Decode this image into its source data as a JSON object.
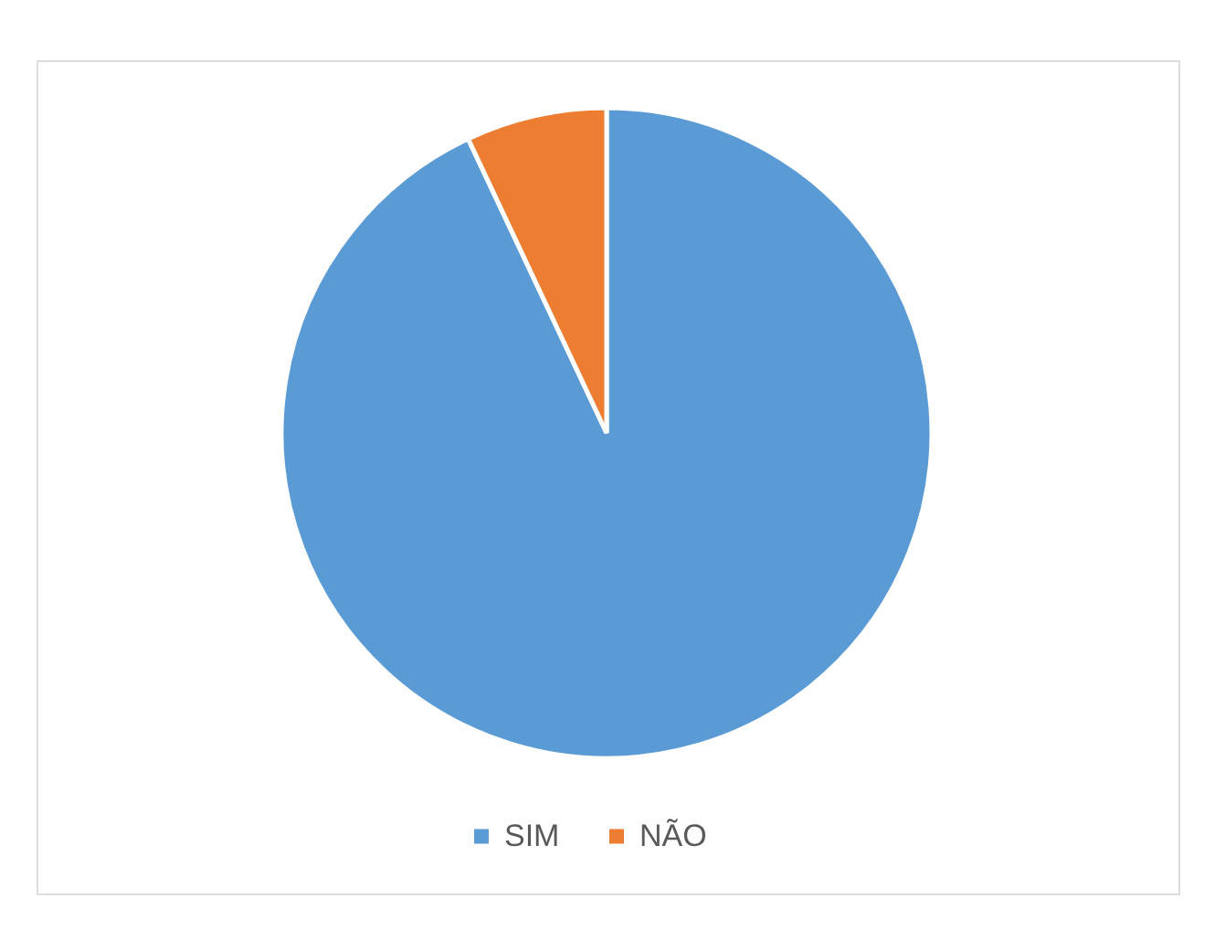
{
  "chart_data": {
    "type": "pie",
    "categories": [
      "SIM",
      "NÃO"
    ],
    "values": [
      93,
      7
    ],
    "colors": [
      "#5b9bd5",
      "#ed7d31"
    ],
    "legend": "bottom"
  }
}
